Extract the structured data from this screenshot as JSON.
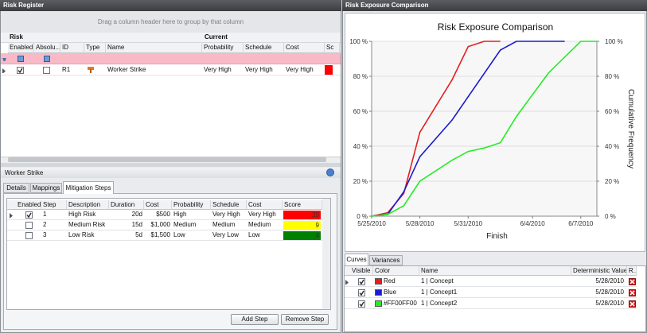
{
  "risk_register": {
    "title": "Risk Register",
    "group_hint": "Drag a column header here to group by that column",
    "group_headers": [
      "Risk",
      "Current"
    ],
    "columns": [
      "Enabled",
      "Absolu...",
      "ID",
      "Type",
      "Name",
      "Probability",
      "Schedule",
      "Cost",
      "Sc"
    ],
    "rows": [
      {
        "enabled": true,
        "absolute": false,
        "id": "R1",
        "name": "Worker Strike",
        "probability": "Very High",
        "schedule": "Very High",
        "cost": "Very High",
        "score_color": "#ff0000"
      }
    ]
  },
  "details": {
    "title": "Worker Strike",
    "tabs": [
      "Details",
      "Mappings",
      "Mitigation Steps"
    ],
    "active_tab": 2,
    "columns": [
      "Enabled",
      "Step",
      "Description",
      "Duration",
      "Cost",
      "Probability",
      "Schedule",
      "Cost",
      "Score"
    ],
    "rows": [
      {
        "enabled": true,
        "step": 1,
        "description": "High Risk",
        "duration": "20d",
        "cost": "$500",
        "probability": "High",
        "schedule": "Very High",
        "cost_level": "Very High",
        "score": 20,
        "score_color": "#ff0000"
      },
      {
        "enabled": false,
        "step": 2,
        "description": "Medium Risk",
        "duration": "15d",
        "cost": "$1,000",
        "probability": "Medium",
        "schedule": "Medium",
        "cost_level": "Medium",
        "score": 9,
        "score_color": "#ffff00"
      },
      {
        "enabled": false,
        "step": 3,
        "description": "Low Risk",
        "duration": "5d",
        "cost": "$1,500",
        "probability": "Low",
        "schedule": "Very Low",
        "cost_level": "Low",
        "score": 4,
        "score_color": "#008000"
      }
    ],
    "buttons": [
      "Add Step",
      "Remove Step"
    ]
  },
  "chart_data": {
    "type": "line",
    "panel_title": "Risk Exposure Comparison",
    "title": "Risk Exposure Comparison",
    "x_label": "Finish",
    "y2_label": "Cumulative Frequency",
    "xlim": [
      "5/25/2010",
      "6/8/2010"
    ],
    "xticks": [
      "5/25/2010",
      "5/28/2010",
      "5/31/2010",
      "6/4/2010",
      "6/7/2010"
    ],
    "ylim": [
      0,
      100
    ],
    "yticks": [
      {
        "value": 0,
        "label": "0 %"
      },
      {
        "value": 20,
        "label": "20 %"
      },
      {
        "value": 40,
        "label": "40 %"
      },
      {
        "value": 60,
        "label": "60 %"
      },
      {
        "value": 80,
        "label": "80 %"
      },
      {
        "value": 100,
        "label": "100 %"
      }
    ],
    "y2lim": [
      0,
      100
    ],
    "y2ticks": [
      {
        "value": 0,
        "label": "0 %"
      },
      {
        "value": 20,
        "label": "20 %"
      },
      {
        "value": 40,
        "label": "40 %"
      },
      {
        "value": 60,
        "label": "60 %"
      },
      {
        "value": 80,
        "label": "80 %"
      },
      {
        "value": 100,
        "label": "100 %"
      }
    ],
    "grid": true,
    "series": [
      {
        "name": "1 | Concept",
        "color": "#e41e1e",
        "x": [
          "5/25/2010",
          "5/26/2010",
          "5/27/2010",
          "5/28/2010",
          "5/30/2010",
          "5/31/2010",
          "6/1/2010",
          "6/2/2010"
        ],
        "values": [
          0,
          2,
          13,
          48,
          78,
          97,
          100,
          100
        ]
      },
      {
        "name": "1 | Concept1",
        "color": "#1c1ccc",
        "x": [
          "5/25/2010",
          "5/26/2010",
          "5/27/2010",
          "5/28/2010",
          "5/30/2010",
          "6/2/2010",
          "6/3/2010",
          "6/6/2010"
        ],
        "values": [
          0,
          1,
          14,
          34,
          55,
          95,
          100,
          100
        ]
      },
      {
        "name": "1 | Concept2",
        "color": "#22ee22",
        "x": [
          "5/25/2010",
          "5/26/2010",
          "5/27/2010",
          "5/28/2010",
          "5/30/2010",
          "5/31/2010",
          "6/1/2010",
          "6/2/2010",
          "6/3/2010",
          "6/5/2010",
          "6/7/2010",
          "6/8/2010"
        ],
        "values": [
          0,
          1,
          6,
          20,
          32,
          37,
          39,
          42,
          57,
          82,
          100,
          100
        ]
      }
    ]
  },
  "curves": {
    "tabs": [
      "Curves",
      "Variances"
    ],
    "columns": [
      "Visible",
      "Color",
      "Name",
      "Deterministic Value",
      "R..."
    ],
    "rows": [
      {
        "visible": true,
        "color_label": "Red",
        "value": "5/28/2010"
      },
      {
        "visible": true,
        "color_label": "Blue",
        "value": "5/28/2010"
      },
      {
        "visible": true,
        "color_label": "#FF00FF00",
        "value": "5/28/2010"
      }
    ]
  }
}
